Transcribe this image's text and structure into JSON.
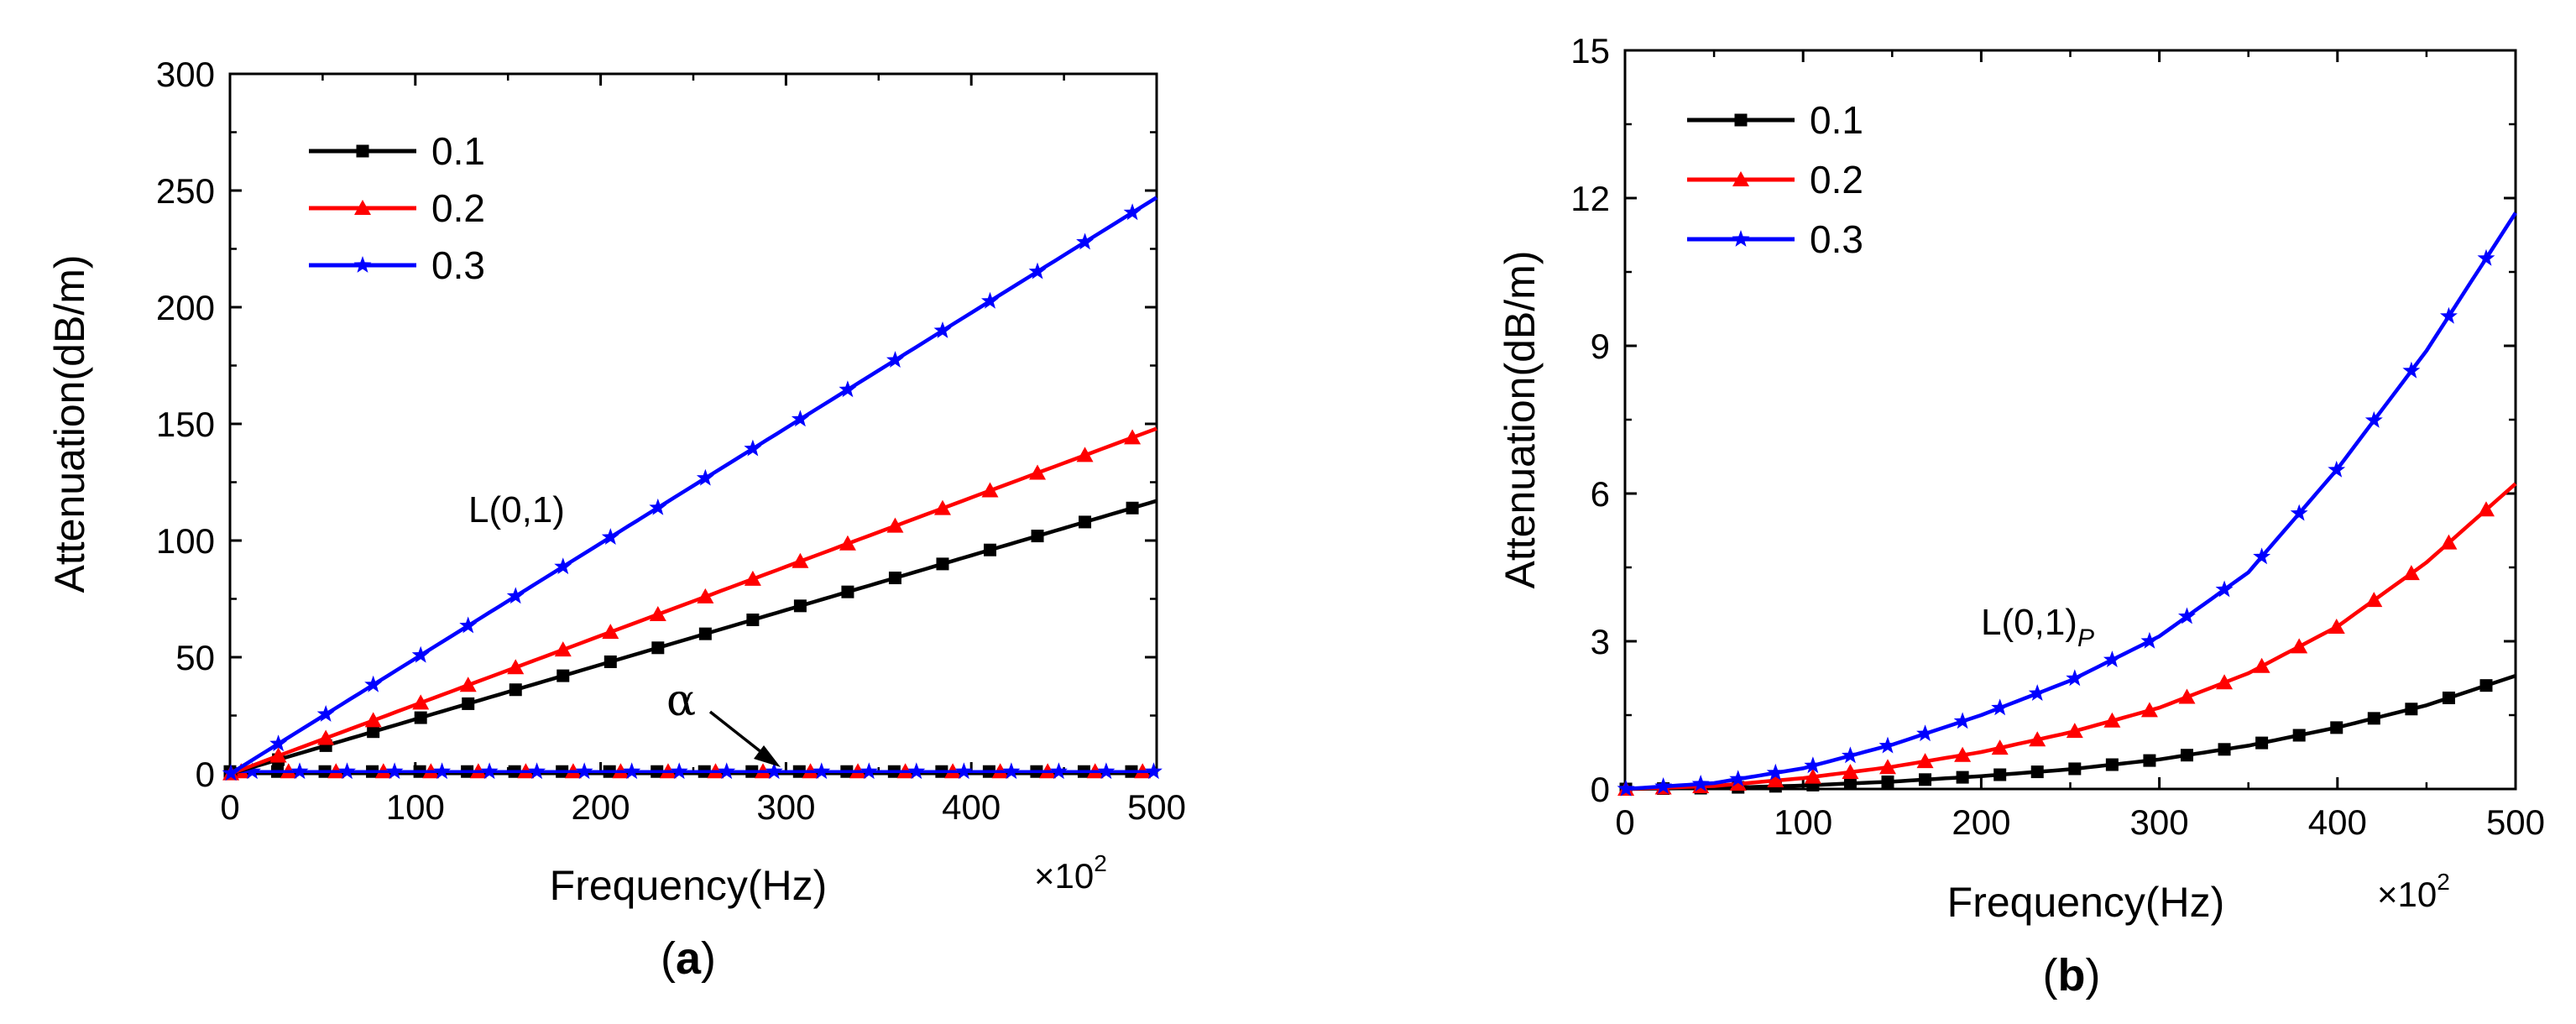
{
  "chart_data": [
    {
      "panel": "a",
      "type": "line",
      "caption": {
        "open": "(",
        "letter": "a",
        "close": ")"
      },
      "xlabel": "Frequency(Hz)",
      "ylabel": "Attenuation(dB/m)",
      "x_multiplier": {
        "base": "×10",
        "exponent": "2"
      },
      "xlim": [
        0,
        500
      ],
      "ylim": [
        0,
        300
      ],
      "xticks": [
        "0",
        "100",
        "200",
        "300",
        "400",
        "500"
      ],
      "yticks": [
        "0",
        "50",
        "100",
        "150",
        "200",
        "250",
        "300"
      ],
      "legend_position": "top-left",
      "annotations": {
        "mode": "L(0,1)",
        "alpha": "α"
      },
      "series": [
        {
          "name": "0.1",
          "color": "#000000",
          "marker": "square",
          "x": [
            0,
            500
          ],
          "y": [
            0,
            117
          ],
          "alpha_y": 0.4
        },
        {
          "name": "0.2",
          "color": "#ff0000",
          "marker": "triangle",
          "x": [
            0,
            500
          ],
          "y": [
            0,
            148
          ],
          "alpha_y": 0.6
        },
        {
          "name": "0.3",
          "color": "#0000ff",
          "marker": "star",
          "x": [
            0,
            500
          ],
          "y": [
            0,
            247
          ],
          "alpha_y": 0.9
        }
      ]
    },
    {
      "panel": "b",
      "type": "line",
      "caption": {
        "open": "(",
        "letter": "b",
        "close": ")"
      },
      "xlabel": "Frequency(Hz)",
      "ylabel": "Attenuation(dB/m)",
      "x_multiplier": {
        "base": "×10",
        "exponent": "2"
      },
      "xlim": [
        0,
        500
      ],
      "ylim": [
        0,
        15
      ],
      "xticks": [
        "0",
        "100",
        "200",
        "300",
        "400",
        "500"
      ],
      "yticks": [
        "0",
        "3",
        "6",
        "9",
        "12",
        "15"
      ],
      "legend_position": "top-left",
      "annotations": {
        "mode": "L(0,1)",
        "mode_sub": "P"
      },
      "series": [
        {
          "name": "0.1",
          "color": "#000000",
          "marker": "square",
          "x": [
            0,
            50,
            100,
            150,
            200,
            250,
            300,
            350,
            400,
            450,
            500
          ],
          "y": [
            0,
            0.02,
            0.07,
            0.15,
            0.26,
            0.4,
            0.6,
            0.88,
            1.25,
            1.7,
            2.3
          ]
        },
        {
          "name": "0.2",
          "color": "#ff0000",
          "marker": "triangle",
          "x": [
            0,
            50,
            100,
            150,
            200,
            250,
            300,
            350,
            400,
            450,
            500
          ],
          "y": [
            0,
            0.06,
            0.22,
            0.45,
            0.75,
            1.15,
            1.65,
            2.35,
            3.3,
            4.6,
            6.2
          ]
        },
        {
          "name": "0.3",
          "color": "#0000ff",
          "marker": "star",
          "x": [
            0,
            50,
            100,
            150,
            200,
            250,
            300,
            350,
            400,
            450,
            500
          ],
          "y": [
            0,
            0.12,
            0.42,
            0.9,
            1.5,
            2.2,
            3.1,
            4.4,
            6.5,
            8.9,
            11.7
          ]
        }
      ]
    }
  ]
}
